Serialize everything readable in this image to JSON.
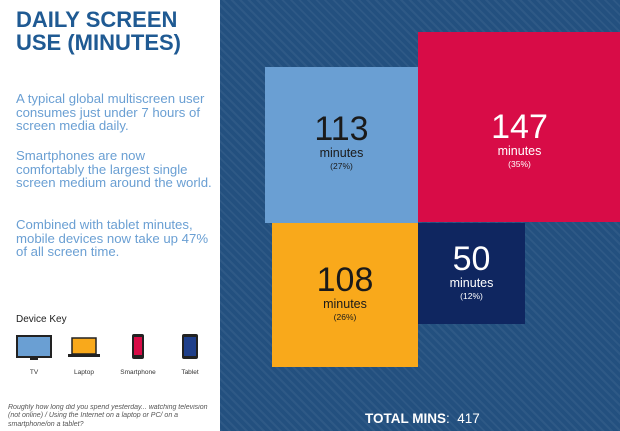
{
  "title_lines": [
    "DAILY SCREEN",
    "USE (MINUTES)"
  ],
  "paragraphs": [
    "A typical global multiscreen user consumes just under 7 hours of screen media daily.",
    "Smartphones are now comfortably the largest single screen medium around the world.",
    "Combined with tablet minutes, mobile devices now take up 47% of all screen time."
  ],
  "device_key": {
    "title": "Device Key",
    "devices": [
      {
        "label": "TV",
        "icon": "tv-icon"
      },
      {
        "label": "Laptop",
        "icon": "laptop-icon"
      },
      {
        "label": "Smartphone",
        "icon": "smartphone-icon"
      },
      {
        "label": "Tablet",
        "icon": "tablet-icon"
      }
    ]
  },
  "footnote": "Roughly how long did you spend yesterday... watching television (not online) / Using the Internet on a laptop or PC/ on a smartphone/on a tablet?",
  "chart_data": {
    "type": "treemap",
    "unit": "minutes",
    "series": [
      {
        "device": "TV",
        "value": 113,
        "unit_label": "minutes",
        "percent": "(27%)",
        "color": "#6a9fd3"
      },
      {
        "device": "Smartphone",
        "value": 147,
        "unit_label": "minutes",
        "percent": "(35%)",
        "color": "#d80c47"
      },
      {
        "device": "Laptop",
        "value": 108,
        "unit_label": "minutes",
        "percent": "(26%)",
        "color": "#f9a91b"
      },
      {
        "device": "Tablet",
        "value": 50,
        "unit_label": "minutes",
        "percent": "(12%)",
        "color": "#0f2660"
      }
    ],
    "total": {
      "label": "TOTAL MINS",
      "separator": ":",
      "value": "417"
    }
  },
  "colors": {
    "title": "#1f5a93",
    "body_text": "#6a9fd3",
    "panel_background": "#23507f"
  }
}
